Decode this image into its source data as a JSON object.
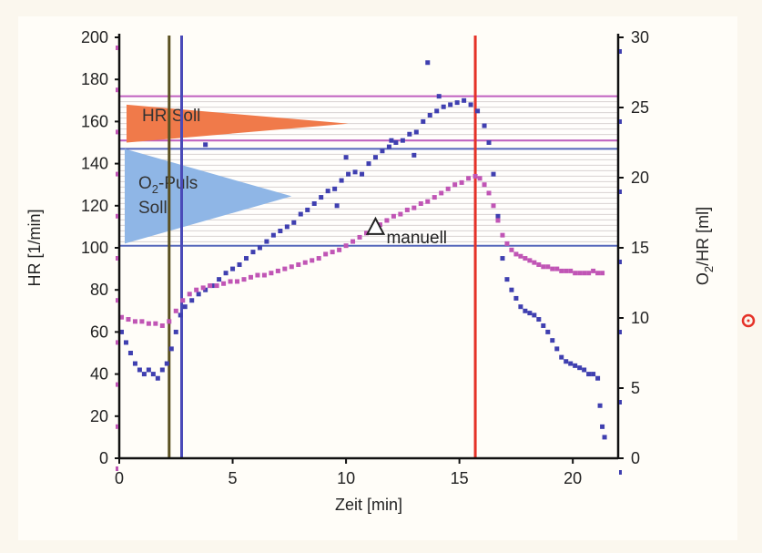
{
  "chart_data": {
    "type": "scatter",
    "xlabel": "Zeit [min]",
    "ylabel_left": "HR [1/min]",
    "ylabel_right_parts": [
      "O",
      "2",
      "/HR [ml]"
    ],
    "xlim": [
      0,
      22
    ],
    "ylim_left": [
      0,
      200
    ],
    "ylim_right": [
      0,
      30
    ],
    "x_ticks": [
      0,
      5,
      10,
      15,
      20
    ],
    "y_left_ticks": [
      0,
      20,
      40,
      60,
      80,
      100,
      120,
      140,
      160,
      180,
      200
    ],
    "y_right_ticks": [
      0,
      5,
      10,
      15,
      20,
      25,
      30
    ],
    "vertical_lines": [
      {
        "x": 2.2,
        "color": "#5a5020"
      },
      {
        "x": 2.75,
        "color": "#4a4ab8"
      },
      {
        "x": 15.7,
        "color": "#e53228"
      }
    ],
    "hr_soll_band": {
      "from": 151,
      "to": 172,
      "color": "#c060c0"
    },
    "o2_puls_soll_band": {
      "from": 101,
      "to": 147,
      "color": "#5566bb"
    },
    "triangles": [
      {
        "label": "HR Soll",
        "y_top": 168,
        "y_bottom": 150,
        "x_tip": 10.1,
        "color": "#f07a4a"
      },
      {
        "label_parts": [
          "O",
          "2",
          "-Puls"
        ],
        "label_line2": "Soll",
        "y_top": 147,
        "y_bottom": 102,
        "x_tip": 7.6,
        "color": "#8fb6e6"
      }
    ],
    "annotation": {
      "label": "manuell",
      "x": 11.3,
      "hr": 110
    },
    "series": [
      {
        "axis": "left",
        "color": "#3f3fb0",
        "points": [
          [
            0.1,
            60
          ],
          [
            0.3,
            55
          ],
          [
            0.5,
            50
          ],
          [
            0.7,
            45
          ],
          [
            0.9,
            42
          ],
          [
            1.1,
            40
          ],
          [
            1.3,
            42
          ],
          [
            1.5,
            40
          ],
          [
            1.7,
            38
          ],
          [
            1.9,
            42
          ],
          [
            2.1,
            45
          ],
          [
            2.3,
            52
          ],
          [
            2.5,
            60
          ],
          [
            2.7,
            68
          ],
          [
            2.9,
            72
          ],
          [
            3.2,
            75
          ],
          [
            3.5,
            78
          ],
          [
            3.8,
            80
          ],
          [
            4.1,
            82
          ],
          [
            4.4,
            85
          ],
          [
            4.7,
            88
          ],
          [
            5.0,
            90
          ],
          [
            5.3,
            92
          ],
          [
            5.6,
            95
          ],
          [
            5.9,
            98
          ],
          [
            6.2,
            100
          ],
          [
            6.5,
            103
          ],
          [
            6.8,
            106
          ],
          [
            7.1,
            108
          ],
          [
            7.4,
            110
          ],
          [
            7.7,
            112
          ],
          [
            8.0,
            116
          ],
          [
            8.3,
            118
          ],
          [
            8.6,
            121
          ],
          [
            8.9,
            124
          ],
          [
            9.2,
            127
          ],
          [
            9.5,
            128
          ],
          [
            9.8,
            132
          ],
          [
            10.1,
            135
          ],
          [
            10.4,
            136
          ],
          [
            10.7,
            135
          ],
          [
            11.0,
            140
          ],
          [
            11.3,
            143
          ],
          [
            11.6,
            146
          ],
          [
            11.9,
            148
          ],
          [
            12.2,
            150
          ],
          [
            12.5,
            151
          ],
          [
            12.8,
            154
          ],
          [
            13.1,
            155
          ],
          [
            13.4,
            160
          ],
          [
            13.7,
            163
          ],
          [
            14.0,
            165
          ],
          [
            14.3,
            167
          ],
          [
            14.6,
            168
          ],
          [
            14.9,
            169
          ],
          [
            15.2,
            170
          ],
          [
            15.5,
            168
          ],
          [
            15.8,
            165
          ],
          [
            16.1,
            158
          ],
          [
            16.3,
            150
          ],
          [
            16.5,
            135
          ],
          [
            16.7,
            115
          ],
          [
            16.9,
            95
          ],
          [
            17.1,
            85
          ],
          [
            17.3,
            80
          ],
          [
            17.5,
            76
          ],
          [
            17.7,
            72
          ],
          [
            17.9,
            70
          ],
          [
            18.1,
            69
          ],
          [
            18.3,
            68
          ],
          [
            18.5,
            66
          ],
          [
            18.7,
            63
          ],
          [
            18.9,
            60
          ],
          [
            19.1,
            56
          ],
          [
            19.3,
            52
          ],
          [
            19.5,
            48
          ],
          [
            19.7,
            46
          ],
          [
            19.9,
            45
          ],
          [
            20.1,
            44
          ],
          [
            20.3,
            43
          ],
          [
            20.5,
            42
          ],
          [
            20.7,
            40
          ],
          [
            20.9,
            40
          ],
          [
            21.1,
            38
          ],
          [
            21.2,
            25
          ],
          [
            21.3,
            15
          ],
          [
            21.4,
            10
          ],
          [
            3.8,
            149
          ],
          [
            10.0,
            143
          ],
          [
            13.0,
            144
          ],
          [
            13.6,
            188
          ],
          [
            14.1,
            172
          ],
          [
            12.0,
            151
          ],
          [
            9.6,
            120
          ]
        ]
      },
      {
        "axis": "left",
        "color": "#c055b5",
        "points": [
          [
            0.1,
            67
          ],
          [
            0.4,
            66
          ],
          [
            0.7,
            65
          ],
          [
            1.0,
            65
          ],
          [
            1.3,
            64
          ],
          [
            1.6,
            64
          ],
          [
            1.9,
            63
          ],
          [
            2.2,
            65
          ],
          [
            2.5,
            70
          ],
          [
            2.8,
            75
          ],
          [
            3.1,
            78
          ],
          [
            3.4,
            80
          ],
          [
            3.7,
            81
          ],
          [
            4.0,
            82
          ],
          [
            4.3,
            82
          ],
          [
            4.6,
            83
          ],
          [
            4.9,
            84
          ],
          [
            5.2,
            84
          ],
          [
            5.5,
            85
          ],
          [
            5.8,
            86
          ],
          [
            6.1,
            87
          ],
          [
            6.4,
            87
          ],
          [
            6.7,
            88
          ],
          [
            7.0,
            89
          ],
          [
            7.3,
            90
          ],
          [
            7.6,
            91
          ],
          [
            7.9,
            92
          ],
          [
            8.2,
            93
          ],
          [
            8.5,
            94
          ],
          [
            8.8,
            95
          ],
          [
            9.1,
            97
          ],
          [
            9.4,
            98
          ],
          [
            9.7,
            99
          ],
          [
            10.0,
            101
          ],
          [
            10.3,
            103
          ],
          [
            10.6,
            105
          ],
          [
            10.9,
            107
          ],
          [
            11.2,
            109
          ],
          [
            11.5,
            111
          ],
          [
            11.8,
            113
          ],
          [
            12.1,
            115
          ],
          [
            12.4,
            116
          ],
          [
            12.7,
            118
          ],
          [
            13.0,
            119
          ],
          [
            13.3,
            121
          ],
          [
            13.6,
            122
          ],
          [
            13.9,
            124
          ],
          [
            14.2,
            126
          ],
          [
            14.5,
            128
          ],
          [
            14.8,
            130
          ],
          [
            15.1,
            131
          ],
          [
            15.4,
            133
          ],
          [
            15.7,
            134
          ],
          [
            15.9,
            133
          ],
          [
            16.1,
            130
          ],
          [
            16.3,
            126
          ],
          [
            16.5,
            120
          ],
          [
            16.7,
            113
          ],
          [
            16.9,
            106
          ],
          [
            17.1,
            102
          ],
          [
            17.3,
            99
          ],
          [
            17.5,
            97
          ],
          [
            17.7,
            96
          ],
          [
            17.9,
            95
          ],
          [
            18.1,
            94
          ],
          [
            18.3,
            93
          ],
          [
            18.5,
            92
          ],
          [
            18.7,
            91
          ],
          [
            18.9,
            91
          ],
          [
            19.1,
            90
          ],
          [
            19.3,
            90
          ],
          [
            19.5,
            89
          ],
          [
            19.7,
            89
          ],
          [
            19.9,
            89
          ],
          [
            20.1,
            88
          ],
          [
            20.3,
            88
          ],
          [
            20.5,
            88
          ],
          [
            20.7,
            88
          ],
          [
            20.9,
            89
          ],
          [
            21.1,
            88
          ],
          [
            21.3,
            88
          ]
        ]
      }
    ]
  },
  "annotation_label": "manuell",
  "hr_soll_label": "HR Soll",
  "o2_soll_line1_parts": [
    "O",
    "2",
    "-Puls"
  ],
  "o2_soll_line2": "Soll",
  "edge_marker_color": "#e53228"
}
